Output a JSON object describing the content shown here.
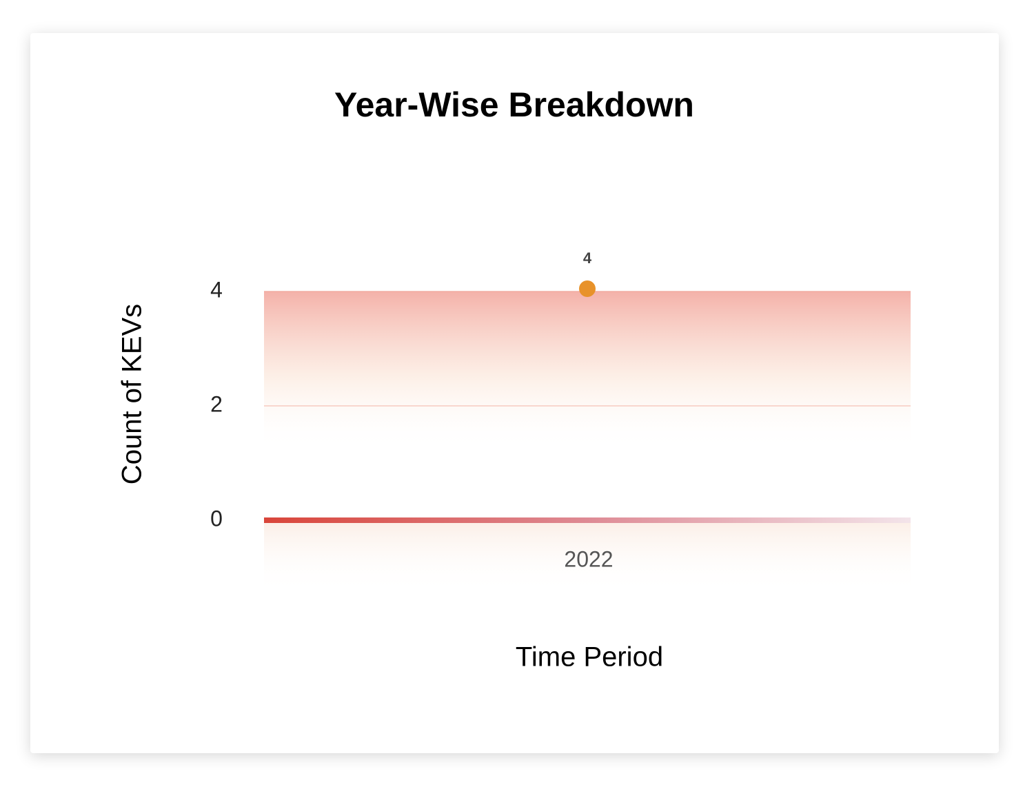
{
  "chart_data": {
    "type": "line",
    "title": "Year-Wise Breakdown",
    "x_label": "Time Period",
    "y_label": "Count of KEVs",
    "categories": [
      "2022"
    ],
    "series": [
      {
        "name": "Count of KEVs",
        "color": "#e8922a",
        "values": [
          4
        ]
      }
    ],
    "ylim": [
      0,
      4
    ],
    "yticks": [
      0,
      2,
      4
    ],
    "grid": true
  }
}
